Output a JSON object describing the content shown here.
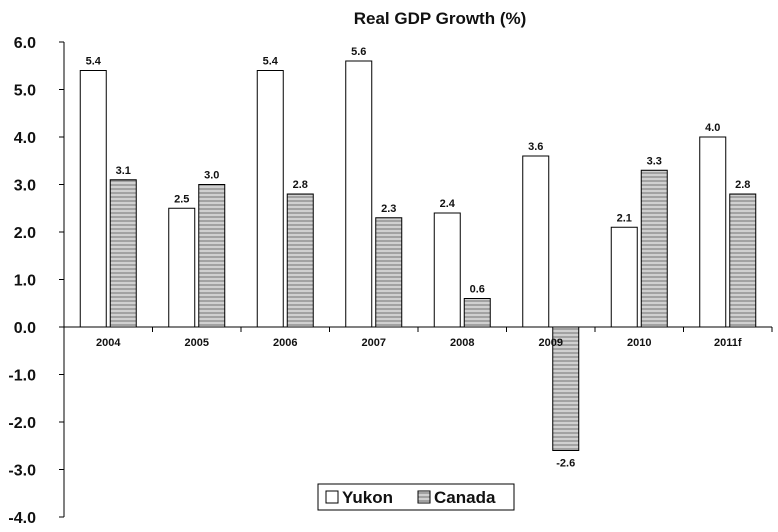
{
  "chart_data": {
    "type": "bar",
    "title": "Real GDP Growth (%)",
    "xlabel": "",
    "ylabel": "",
    "categories": [
      "2004",
      "2005",
      "2006",
      "2007",
      "2008",
      "2009",
      "2010",
      "2011f"
    ],
    "series": [
      {
        "name": "Yukon",
        "values": [
          5.4,
          2.5,
          5.4,
          5.6,
          2.4,
          3.6,
          2.1,
          4.0
        ],
        "value_labels": [
          "5.4",
          "2.5",
          "5.4",
          "5.6",
          "2.4",
          "3.6",
          "2.1",
          "4.0"
        ],
        "color": "#ffffff"
      },
      {
        "name": "Canada",
        "values": [
          3.1,
          3.0,
          2.8,
          2.3,
          0.6,
          -2.6,
          3.3,
          2.8
        ],
        "value_labels": [
          "3.1",
          "3.0",
          "2.8",
          "2.3",
          "0.6",
          "-2.6",
          "3.3",
          "2.8"
        ],
        "color": "#ffffff",
        "pattern": "horizontal-stripes"
      }
    ],
    "ylim": [
      -4.0,
      6.0
    ],
    "yticks": [
      6.0,
      5.0,
      4.0,
      3.0,
      2.0,
      1.0,
      0.0,
      -1.0,
      -2.0,
      -3.0,
      -4.0
    ],
    "ytick_labels": [
      "6.0",
      "5.0",
      "4.0",
      "3.0",
      "2.0",
      "1.0",
      "0.0",
      "-1.0",
      "-2.0",
      "-3.0",
      "-4.0"
    ],
    "grid": false,
    "legend_position": "bottom-center",
    "legend_box": true
  }
}
